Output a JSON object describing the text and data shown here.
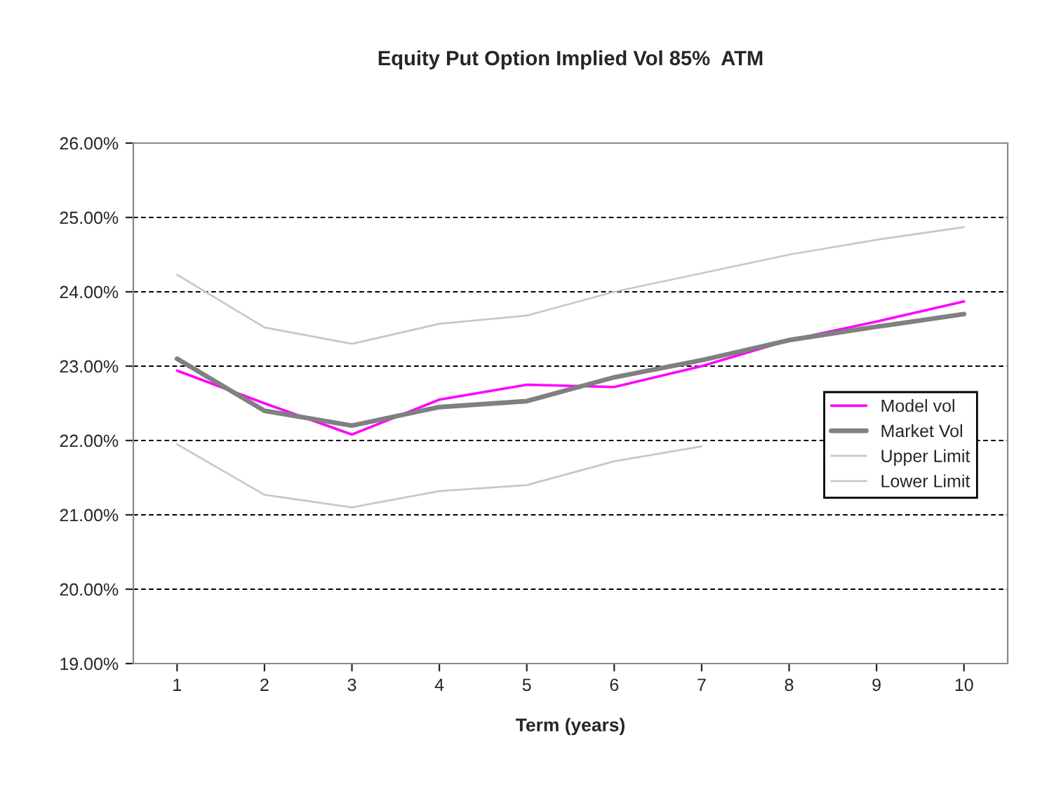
{
  "chart_data": {
    "type": "line",
    "title": "Equity Put Option Implied Vol 85%  ATM",
    "xlabel": "Term (years)",
    "categories": [
      "1",
      "2",
      "3",
      "4",
      "5",
      "6",
      "7",
      "8",
      "9",
      "10"
    ],
    "series": [
      {
        "name": "Model vol",
        "color": "#ff00ff",
        "values": [
          22.94,
          22.5,
          22.08,
          22.55,
          22.75,
          22.72,
          23.0,
          23.35,
          23.6,
          23.87
        ]
      },
      {
        "name": "Market Vol",
        "color": "#808080",
        "values": [
          23.1,
          22.4,
          22.2,
          22.45,
          22.53,
          22.85,
          23.08,
          23.35,
          23.53,
          23.7
        ]
      },
      {
        "name": "Upper Limit",
        "color": "#c8c8c8",
        "values": [
          24.23,
          23.52,
          23.3,
          23.57,
          23.68,
          24.0,
          24.25,
          24.5,
          24.7,
          24.87
        ]
      },
      {
        "name": "Lower Limit",
        "color": "#c8c8c8",
        "values": [
          21.95,
          21.27,
          21.1,
          21.32,
          21.4,
          21.72,
          21.92,
          null,
          null,
          null
        ]
      }
    ],
    "ylim": [
      19,
      26
    ],
    "yticks": [
      {
        "value": 19,
        "label": "19.00%"
      },
      {
        "value": 20,
        "label": "20.00%"
      },
      {
        "value": 21,
        "label": "21.00%"
      },
      {
        "value": 22,
        "label": "22.00%"
      },
      {
        "value": 23,
        "label": "23.00%"
      },
      {
        "value": 24,
        "label": "24.00%"
      },
      {
        "value": 25,
        "label": "25.00%"
      },
      {
        "value": 26,
        "label": "26.00%"
      }
    ],
    "grid": "y",
    "legend": "right",
    "marker": "none",
    "line_style": "solid"
  }
}
